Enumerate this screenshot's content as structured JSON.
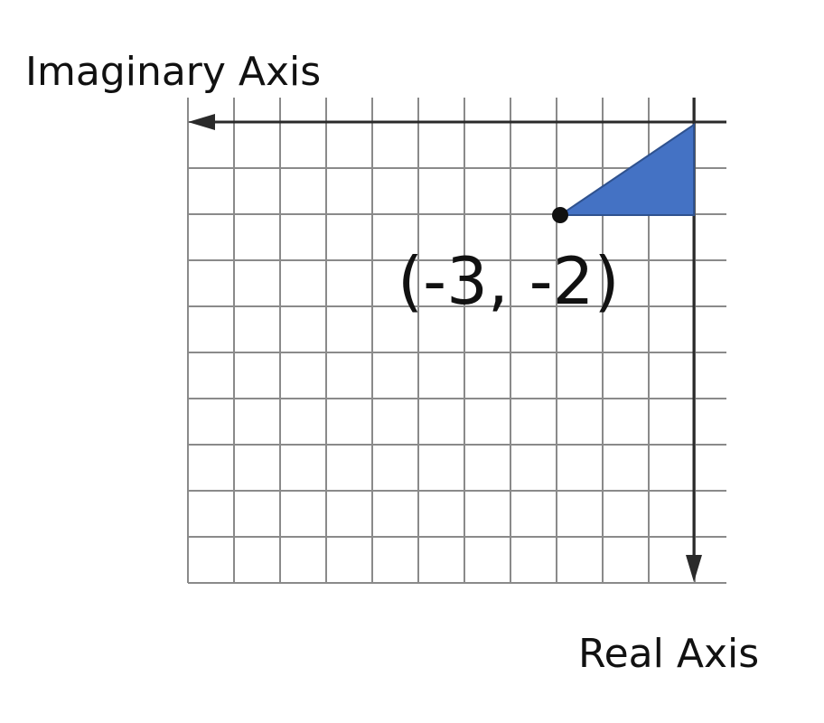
{
  "labels": {
    "imaginary_axis": "Imaginary Axis",
    "real_axis": "Real Axis",
    "point": "(-3, -2)"
  },
  "grid": {
    "columns": 12,
    "rows": 10
  },
  "point": {
    "real": -3,
    "imaginary": -2
  },
  "colors": {
    "triangle_fill": "#4472c4",
    "triangle_stroke": "#2f528f",
    "axis": "#2a2a2a",
    "grid": "#8a8a8a",
    "point": "#111111"
  }
}
